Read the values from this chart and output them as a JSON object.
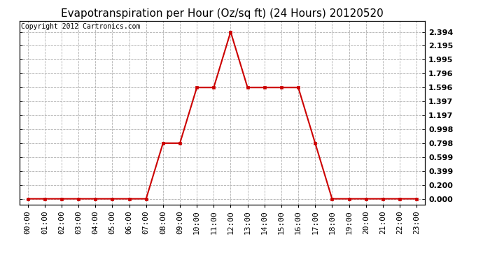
{
  "title": "Evapotranspiration per Hour (Oz/sq ft) (24 Hours) 20120520",
  "copyright": "Copyright 2012 Cartronics.com",
  "hours": [
    "00:00",
    "01:00",
    "02:00",
    "03:00",
    "04:00",
    "05:00",
    "06:00",
    "07:00",
    "08:00",
    "09:00",
    "10:00",
    "11:00",
    "12:00",
    "13:00",
    "14:00",
    "15:00",
    "16:00",
    "17:00",
    "18:00",
    "19:00",
    "20:00",
    "21:00",
    "22:00",
    "23:00"
  ],
  "values": [
    0.0,
    0.0,
    0.0,
    0.0,
    0.0,
    0.0,
    0.0,
    0.0,
    0.798,
    0.798,
    1.596,
    1.596,
    2.394,
    1.596,
    1.596,
    1.596,
    1.596,
    0.798,
    0.0,
    0.0,
    0.0,
    0.0,
    0.0,
    0.0
  ],
  "yticks": [
    0.0,
    0.2,
    0.399,
    0.599,
    0.798,
    0.998,
    1.197,
    1.397,
    1.596,
    1.796,
    1.995,
    2.195,
    2.394
  ],
  "line_color": "#cc0000",
  "marker_color": "#cc0000",
  "bg_color": "#ffffff",
  "plot_bg_color": "#ffffff",
  "grid_color": "#b0b0b0",
  "title_fontsize": 11,
  "copyright_fontsize": 7,
  "tick_fontsize": 8,
  "ylim": [
    -0.08,
    2.55
  ],
  "xlim": [
    -0.5,
    23.5
  ]
}
